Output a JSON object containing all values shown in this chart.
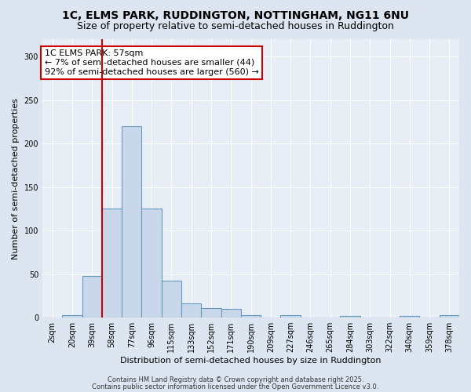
{
  "title": "1C, ELMS PARK, RUDDINGTON, NOTTINGHAM, NG11 6NU",
  "subtitle": "Size of property relative to semi-detached houses in Ruddington",
  "xlabel": "Distribution of semi-detached houses by size in Ruddington",
  "ylabel": "Number of semi-detached properties",
  "categories": [
    "2sqm",
    "20sqm",
    "39sqm",
    "58sqm",
    "77sqm",
    "96sqm",
    "115sqm",
    "133sqm",
    "152sqm",
    "171sqm",
    "190sqm",
    "209sqm",
    "227sqm",
    "246sqm",
    "265sqm",
    "284sqm",
    "303sqm",
    "322sqm",
    "340sqm",
    "359sqm",
    "378sqm"
  ],
  "values": [
    0,
    3,
    48,
    125,
    220,
    125,
    42,
    16,
    11,
    10,
    3,
    0,
    3,
    0,
    0,
    2,
    0,
    0,
    2,
    0,
    3
  ],
  "bar_color": "#c8d8ea",
  "bar_edge_color": "#6699bb",
  "red_line_index": 3,
  "annotation_title": "1C ELMS PARK: 57sqm",
  "annotation_line1": "← 7% of semi-detached houses are smaller (44)",
  "annotation_line2": "92% of semi-detached houses are larger (560) →",
  "annotation_box_color": "#ffffff",
  "annotation_box_edge": "#cc0000",
  "red_line_color": "#cc0000",
  "ylim": [
    0,
    320
  ],
  "yticks": [
    0,
    50,
    100,
    150,
    200,
    250,
    300
  ],
  "footer1": "Contains HM Land Registry data © Crown copyright and database right 2025.",
  "footer2": "Contains public sector information licensed under the Open Government Licence v3.0.",
  "bg_color": "#dde6f0",
  "plot_bg_color": "#e8eef5",
  "title_fontsize": 10,
  "subtitle_fontsize": 9,
  "axis_label_fontsize": 8,
  "tick_fontsize": 7,
  "annotation_fontsize": 8,
  "footer_fontsize": 6
}
